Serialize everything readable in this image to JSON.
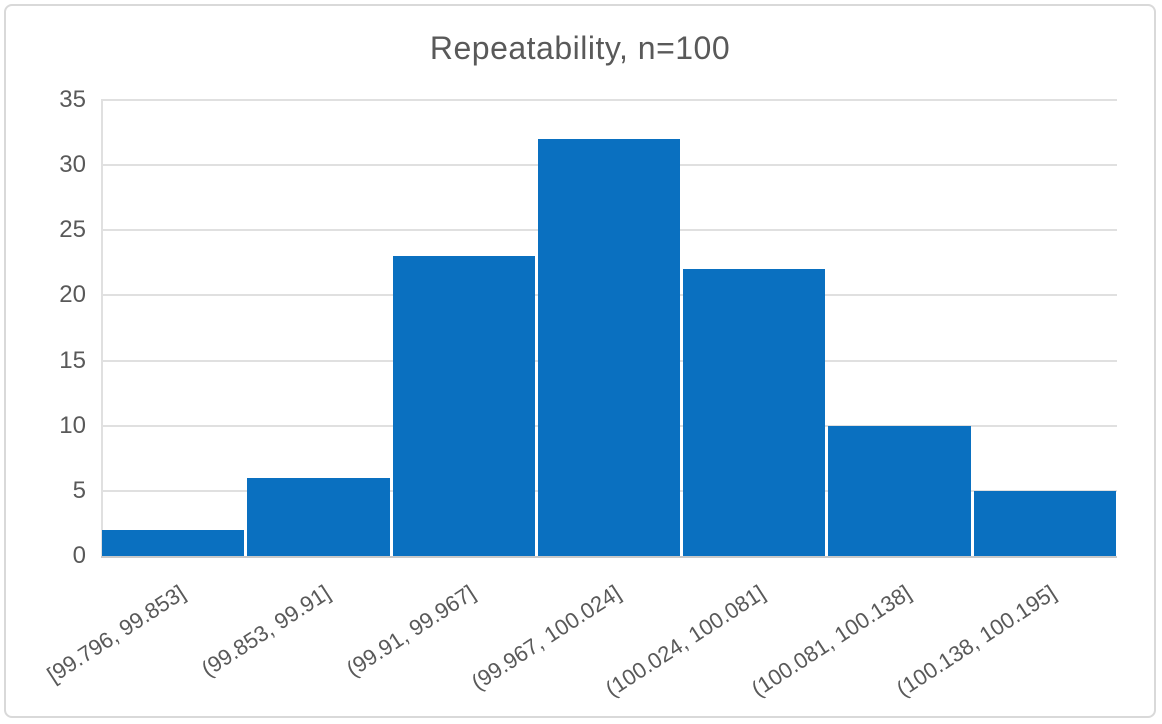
{
  "chart_data": {
    "type": "bar",
    "subtype": "histogram",
    "title": "Repeatability, n=100",
    "categories": [
      "[99.796, 99.853]",
      "(99.853, 99.91]",
      "(99.91, 99.967]",
      "(99.967, 100.024]",
      "(100.024, 100.081]",
      "(100.081, 100.138]",
      "(100.138, 100.195]"
    ],
    "values": [
      2,
      6,
      23,
      32,
      22,
      10,
      5
    ],
    "xlabel": "",
    "ylabel": "",
    "ylim": [
      0,
      35
    ],
    "yticks": [
      0,
      5,
      10,
      15,
      20,
      25,
      30,
      35
    ],
    "grid": true,
    "legend": "none",
    "colors": {
      "bar": "#0a70c0",
      "gridline": "#e0e0e0",
      "axis_line": "#c9c9c9",
      "text": "#595959",
      "chart_border": "#d9d9d9",
      "background": "#ffffff"
    }
  }
}
